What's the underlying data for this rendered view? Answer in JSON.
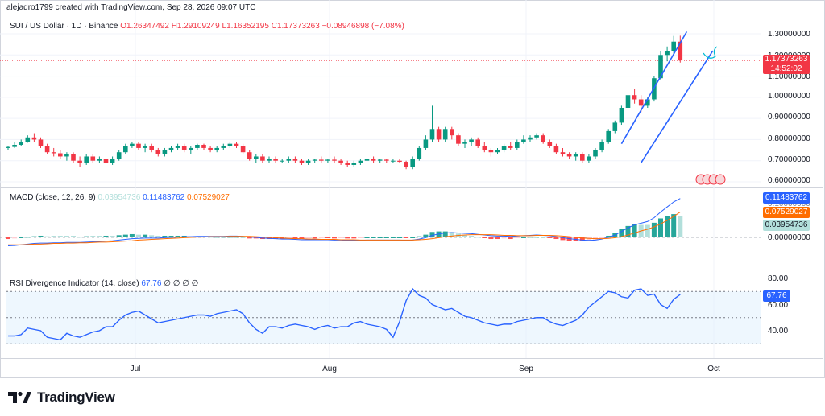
{
  "header": {
    "credit": "alejadro1799 created with TradingView.com, Sep 28, 2026 09:07 UTC",
    "symbol": "SUI / US Dollar · 1D · Binance",
    "open": "O1.26347492",
    "high": "H1.29109249",
    "low": "L1.16352195",
    "close": "C1.17373263",
    "change": "−0.08946898 (−7.08%)"
  },
  "price_tags": {
    "last": "1.17373263",
    "countdown": "14:52:02"
  },
  "price_axis": [
    "1.30000000",
    "1.20000000",
    "1.10000000",
    "1.00000000",
    "0.90000000",
    "0.80000000",
    "0.70000000",
    "0.60000000"
  ],
  "macd": {
    "legend": "MACD (close, 12, 26, 9)",
    "hist_value": "0.03954736",
    "macd_value": "0.11483762",
    "signal_value": "0.07529027",
    "axis": [
      "0.10000000",
      "0.00000000"
    ]
  },
  "rsi": {
    "legend": "RSI Divergence Indicator (14, close)",
    "value": "67.76",
    "extra": "∅ ∅ ∅ ∅",
    "axis": [
      "80.00",
      "60.00",
      "40.00"
    ]
  },
  "x_axis": [
    "Jul",
    "Aug",
    "Sep",
    "Oct"
  ],
  "brand": "TradingView",
  "colors": {
    "up": "#089981",
    "down": "#f23645",
    "macd_line": "#2962ff",
    "signal_line": "#ff6d00",
    "rsi_line": "#2962ff",
    "channel": "#2962ff",
    "hist_up_strong": "#26a69a",
    "hist_up_weak": "#b2dfdb",
    "hist_down_strong": "#ff5252",
    "hist_down_weak": "#ffcdd2"
  },
  "chart_data": {
    "type": "candlestick",
    "x_labels": [
      "Jul",
      "Aug",
      "Sep",
      "Oct"
    ],
    "ylim": [
      0.6,
      1.3
    ],
    "candles": [
      [
        0.76,
        0.77,
        0.75,
        0.765
      ],
      [
        0.765,
        0.79,
        0.76,
        0.775
      ],
      [
        0.775,
        0.8,
        0.77,
        0.79
      ],
      [
        0.79,
        0.82,
        0.785,
        0.81
      ],
      [
        0.81,
        0.83,
        0.79,
        0.8
      ],
      [
        0.8,
        0.81,
        0.76,
        0.77
      ],
      [
        0.77,
        0.78,
        0.73,
        0.74
      ],
      [
        0.74,
        0.76,
        0.72,
        0.735
      ],
      [
        0.735,
        0.75,
        0.71,
        0.72
      ],
      [
        0.72,
        0.74,
        0.7,
        0.73
      ],
      [
        0.73,
        0.74,
        0.69,
        0.7
      ],
      [
        0.7,
        0.72,
        0.67,
        0.69
      ],
      [
        0.69,
        0.73,
        0.68,
        0.72
      ],
      [
        0.72,
        0.73,
        0.69,
        0.7
      ],
      [
        0.7,
        0.72,
        0.69,
        0.71
      ],
      [
        0.71,
        0.72,
        0.68,
        0.69
      ],
      [
        0.69,
        0.72,
        0.68,
        0.71
      ],
      [
        0.71,
        0.75,
        0.7,
        0.74
      ],
      [
        0.74,
        0.78,
        0.73,
        0.77
      ],
      [
        0.77,
        0.79,
        0.76,
        0.78
      ],
      [
        0.78,
        0.79,
        0.75,
        0.76
      ],
      [
        0.76,
        0.78,
        0.74,
        0.77
      ],
      [
        0.77,
        0.78,
        0.74,
        0.75
      ],
      [
        0.75,
        0.76,
        0.72,
        0.73
      ],
      [
        0.73,
        0.76,
        0.72,
        0.75
      ],
      [
        0.75,
        0.77,
        0.74,
        0.76
      ],
      [
        0.76,
        0.78,
        0.75,
        0.77
      ],
      [
        0.77,
        0.78,
        0.74,
        0.75
      ],
      [
        0.75,
        0.77,
        0.73,
        0.76
      ],
      [
        0.76,
        0.78,
        0.75,
        0.775
      ],
      [
        0.775,
        0.78,
        0.75,
        0.76
      ],
      [
        0.76,
        0.77,
        0.74,
        0.75
      ],
      [
        0.75,
        0.77,
        0.74,
        0.76
      ],
      [
        0.76,
        0.78,
        0.75,
        0.77
      ],
      [
        0.77,
        0.79,
        0.76,
        0.78
      ],
      [
        0.78,
        0.79,
        0.76,
        0.77
      ],
      [
        0.77,
        0.78,
        0.73,
        0.74
      ],
      [
        0.74,
        0.75,
        0.7,
        0.71
      ],
      [
        0.71,
        0.73,
        0.69,
        0.72
      ],
      [
        0.72,
        0.73,
        0.69,
        0.7
      ],
      [
        0.7,
        0.72,
        0.69,
        0.71
      ],
      [
        0.71,
        0.72,
        0.69,
        0.7
      ],
      [
        0.7,
        0.71,
        0.69,
        0.7
      ],
      [
        0.7,
        0.72,
        0.69,
        0.71
      ],
      [
        0.71,
        0.72,
        0.69,
        0.7
      ],
      [
        0.7,
        0.71,
        0.68,
        0.69
      ],
      [
        0.69,
        0.71,
        0.68,
        0.7
      ],
      [
        0.7,
        0.71,
        0.69,
        0.705
      ],
      [
        0.705,
        0.72,
        0.69,
        0.7
      ],
      [
        0.7,
        0.71,
        0.69,
        0.705
      ],
      [
        0.705,
        0.72,
        0.69,
        0.7
      ],
      [
        0.7,
        0.71,
        0.68,
        0.69
      ],
      [
        0.69,
        0.7,
        0.67,
        0.68
      ],
      [
        0.68,
        0.7,
        0.67,
        0.69
      ],
      [
        0.69,
        0.71,
        0.68,
        0.7
      ],
      [
        0.7,
        0.72,
        0.69,
        0.71
      ],
      [
        0.71,
        0.72,
        0.69,
        0.7
      ],
      [
        0.7,
        0.71,
        0.69,
        0.705
      ],
      [
        0.705,
        0.71,
        0.69,
        0.7
      ],
      [
        0.7,
        0.71,
        0.69,
        0.7
      ],
      [
        0.7,
        0.71,
        0.69,
        0.695
      ],
      [
        0.695,
        0.7,
        0.66,
        0.67
      ],
      [
        0.67,
        0.72,
        0.66,
        0.71
      ],
      [
        0.71,
        0.77,
        0.7,
        0.76
      ],
      [
        0.76,
        0.82,
        0.75,
        0.8
      ],
      [
        0.8,
        0.96,
        0.79,
        0.85
      ],
      [
        0.85,
        0.86,
        0.79,
        0.8
      ],
      [
        0.8,
        0.86,
        0.79,
        0.85
      ],
      [
        0.85,
        0.86,
        0.8,
        0.82
      ],
      [
        0.82,
        0.83,
        0.77,
        0.78
      ],
      [
        0.78,
        0.8,
        0.76,
        0.79
      ],
      [
        0.79,
        0.81,
        0.77,
        0.8
      ],
      [
        0.8,
        0.81,
        0.76,
        0.77
      ],
      [
        0.77,
        0.79,
        0.74,
        0.75
      ],
      [
        0.75,
        0.76,
        0.72,
        0.74
      ],
      [
        0.74,
        0.76,
        0.73,
        0.75
      ],
      [
        0.75,
        0.78,
        0.74,
        0.77
      ],
      [
        0.77,
        0.79,
        0.75,
        0.76
      ],
      [
        0.76,
        0.8,
        0.75,
        0.79
      ],
      [
        0.79,
        0.82,
        0.78,
        0.8
      ],
      [
        0.8,
        0.82,
        0.79,
        0.81
      ],
      [
        0.81,
        0.83,
        0.8,
        0.82
      ],
      [
        0.82,
        0.83,
        0.78,
        0.79
      ],
      [
        0.79,
        0.8,
        0.76,
        0.77
      ],
      [
        0.77,
        0.78,
        0.73,
        0.74
      ],
      [
        0.74,
        0.76,
        0.72,
        0.73
      ],
      [
        0.73,
        0.74,
        0.71,
        0.72
      ],
      [
        0.72,
        0.74,
        0.7,
        0.73
      ],
      [
        0.73,
        0.74,
        0.69,
        0.7
      ],
      [
        0.7,
        0.73,
        0.69,
        0.72
      ],
      [
        0.72,
        0.76,
        0.71,
        0.75
      ],
      [
        0.75,
        0.8,
        0.74,
        0.79
      ],
      [
        0.79,
        0.85,
        0.78,
        0.84
      ],
      [
        0.84,
        0.89,
        0.83,
        0.88
      ],
      [
        0.88,
        0.96,
        0.87,
        0.95
      ],
      [
        0.95,
        1.02,
        0.94,
        1.01
      ],
      [
        1.01,
        1.04,
        0.97,
        0.99
      ],
      [
        0.99,
        1.01,
        0.93,
        0.96
      ],
      [
        0.96,
        1.0,
        0.95,
        0.99
      ],
      [
        0.99,
        1.1,
        0.98,
        1.09
      ],
      [
        1.09,
        1.22,
        1.08,
        1.2
      ],
      [
        1.2,
        1.24,
        1.17,
        1.22
      ],
      [
        1.22,
        1.29,
        1.2,
        1.263
      ],
      [
        1.263,
        1.291,
        1.164,
        1.174
      ]
    ],
    "macd": {
      "macd": [
        -0.025,
        -0.024,
        -0.022,
        -0.02,
        -0.018,
        -0.017,
        -0.017,
        -0.016,
        -0.016,
        -0.015,
        -0.015,
        -0.015,
        -0.014,
        -0.013,
        -0.012,
        -0.011,
        -0.01,
        -0.008,
        -0.006,
        -0.004,
        -0.003,
        -0.002,
        -0.002,
        -0.002,
        -0.001,
        0.0,
        0.001,
        0.002,
        0.002,
        0.003,
        0.003,
        0.003,
        0.003,
        0.003,
        0.004,
        0.004,
        0.003,
        0.001,
        0.0,
        -0.002,
        -0.003,
        -0.004,
        -0.005,
        -0.005,
        -0.006,
        -0.007,
        -0.007,
        -0.007,
        -0.007,
        -0.007,
        -0.008,
        -0.008,
        -0.009,
        -0.009,
        -0.009,
        -0.008,
        -0.008,
        -0.008,
        -0.008,
        -0.008,
        -0.008,
        -0.009,
        -0.008,
        -0.005,
        -0.001,
        0.006,
        0.01,
        0.013,
        0.014,
        0.013,
        0.012,
        0.011,
        0.009,
        0.007,
        0.005,
        0.004,
        0.004,
        0.003,
        0.004,
        0.005,
        0.006,
        0.007,
        0.006,
        0.005,
        0.002,
        -0.001,
        -0.004,
        -0.006,
        -0.008,
        -0.009,
        -0.008,
        -0.005,
        0.0,
        0.007,
        0.017,
        0.028,
        0.037,
        0.042,
        0.047,
        0.058,
        0.075,
        0.09,
        0.105,
        0.115
      ],
      "signal": [
        -0.022,
        -0.022,
        -0.022,
        -0.021,
        -0.02,
        -0.02,
        -0.019,
        -0.018,
        -0.018,
        -0.017,
        -0.017,
        -0.016,
        -0.016,
        -0.015,
        -0.014,
        -0.014,
        -0.013,
        -0.012,
        -0.011,
        -0.01,
        -0.008,
        -0.007,
        -0.006,
        -0.005,
        -0.004,
        -0.003,
        -0.002,
        -0.001,
        0.0,
        0.001,
        0.001,
        0.002,
        0.002,
        0.002,
        0.003,
        0.003,
        0.003,
        0.003,
        0.002,
        0.001,
        0.0,
        -0.001,
        -0.002,
        -0.003,
        -0.004,
        -0.004,
        -0.005,
        -0.005,
        -0.006,
        -0.006,
        -0.006,
        -0.007,
        -0.007,
        -0.007,
        -0.008,
        -0.008,
        -0.008,
        -0.008,
        -0.008,
        -0.008,
        -0.008,
        -0.008,
        -0.008,
        -0.007,
        -0.006,
        -0.004,
        -0.001,
        0.002,
        0.004,
        0.006,
        0.007,
        0.008,
        0.008,
        0.008,
        0.008,
        0.007,
        0.006,
        0.006,
        0.005,
        0.005,
        0.005,
        0.006,
        0.006,
        0.006,
        0.005,
        0.004,
        0.002,
        0.0,
        -0.002,
        -0.003,
        -0.004,
        -0.004,
        -0.003,
        -0.001,
        0.002,
        0.007,
        0.013,
        0.019,
        0.024,
        0.031,
        0.04,
        0.05,
        0.062,
        0.075
      ]
    },
    "rsi": [
      36,
      36,
      37,
      42,
      41,
      40,
      35,
      34,
      33,
      38,
      36,
      35,
      37,
      39,
      40,
      43,
      43,
      48,
      52,
      54,
      55,
      52,
      49,
      46,
      47,
      48,
      49,
      50,
      51,
      52,
      52,
      51,
      53,
      54,
      55,
      56,
      53,
      46,
      41,
      38,
      43,
      43,
      42,
      44,
      45,
      44,
      43,
      41,
      43,
      44,
      42,
      43,
      43,
      46,
      47,
      45,
      44,
      43,
      41,
      35,
      47,
      63,
      72,
      67,
      65,
      60,
      58,
      56,
      57,
      54,
      51,
      50,
      48,
      46,
      45,
      44,
      45,
      45,
      47,
      48,
      49,
      50,
      50,
      47,
      45,
      44,
      46,
      48,
      52,
      58,
      62,
      66,
      70,
      69,
      66,
      65,
      71,
      72,
      67,
      68,
      60,
      57,
      64,
      67.76
    ],
    "channel": {
      "upper": [
        [
          94,
          0.78
        ],
        [
          104,
          1.31
        ]
      ],
      "lower": [
        [
          97,
          0.69
        ],
        [
          108,
          1.22
        ]
      ]
    },
    "rsi_bands": [
      70,
      50,
      30
    ]
  }
}
